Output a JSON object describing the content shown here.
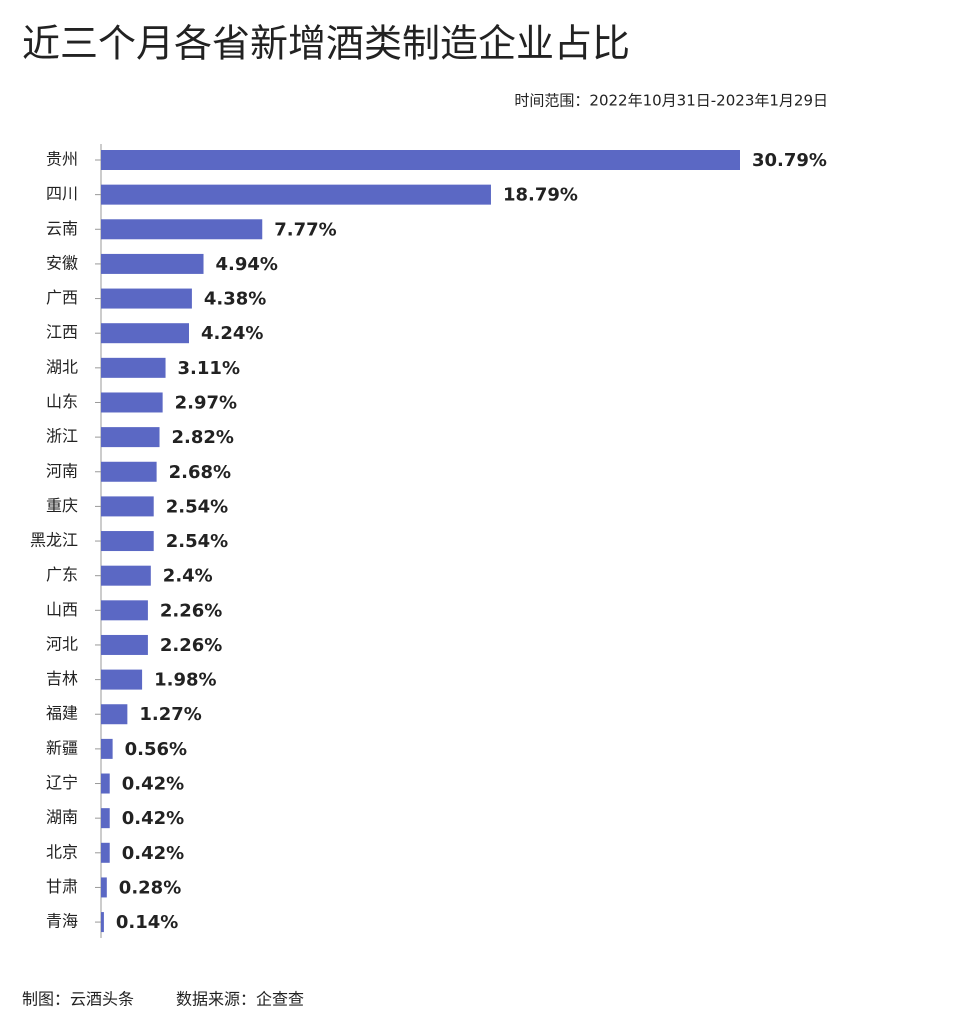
{
  "chart_data": {
    "type": "bar",
    "orientation": "horizontal",
    "title": "近三个月各省新增酒类制造企业占比",
    "subtitle": "时间范围：2022年10月31日-2023年1月29日",
    "categories": [
      "贵州",
      "四川",
      "云南",
      "安徽",
      "广西",
      "江西",
      "湖北",
      "山东",
      "浙江",
      "河南",
      "重庆",
      "黑龙江",
      "广东",
      "山西",
      "河北",
      "吉林",
      "福建",
      "新疆",
      "辽宁",
      "湖南",
      "北京",
      "甘肃",
      "青海"
    ],
    "values": [
      30.79,
      18.79,
      7.77,
      4.94,
      4.38,
      4.24,
      3.11,
      2.97,
      2.82,
      2.68,
      2.54,
      2.54,
      2.4,
      2.26,
      2.26,
      1.98,
      1.27,
      0.56,
      0.42,
      0.42,
      0.42,
      0.28,
      0.14
    ],
    "value_labels": [
      "30.79%",
      "18.79%",
      "7.77%",
      "4.94%",
      "4.38%",
      "4.24%",
      "3.11%",
      "2.97%",
      "2.82%",
      "2.68%",
      "2.54%",
      "2.54%",
      "2.4%",
      "2.26%",
      "2.26%",
      "1.98%",
      "1.27%",
      "0.56%",
      "0.42%",
      "0.42%",
      "0.42%",
      "0.28%",
      "0.14%"
    ],
    "color": "#5b68c4",
    "footer": [
      "制图：云酒头条",
      "数据来源：企查查"
    ]
  }
}
